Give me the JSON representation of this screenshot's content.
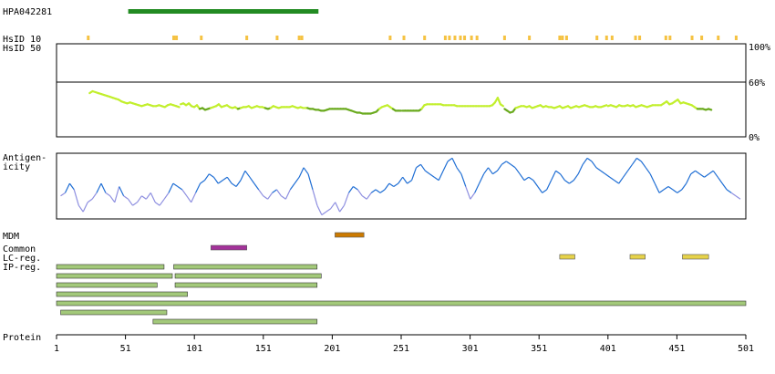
{
  "chart_data": {
    "type": "line",
    "title": "",
    "x_range": [
      1,
      501
    ],
    "x_ticks": [
      "1",
      "51",
      "101",
      "151",
      "201",
      "251",
      "301",
      "351",
      "401",
      "451",
      "501"
    ],
    "antibody": {
      "label": "HPA042281",
      "start": 53,
      "end": 191,
      "color": "#228b22"
    },
    "hsid10": {
      "label": "HsID 10",
      "color": "#f5c242",
      "positions": [
        24,
        86,
        88,
        106,
        139,
        161,
        177,
        179,
        243,
        253,
        268,
        283,
        286,
        290,
        294,
        297,
        302,
        306,
        326,
        344,
        366,
        368,
        371,
        393,
        400,
        404,
        421,
        424,
        443,
        446,
        462,
        469,
        481,
        494
      ]
    },
    "hsid50": {
      "label": "HsID 50",
      "y_ticks": [
        "100%",
        "60%",
        "0%"
      ],
      "ylim": [
        0,
        100
      ],
      "threshold": 60,
      "series": [
        {
          "start": 25,
          "end": 90,
          "values": [
            47,
            49,
            48,
            47,
            46,
            45,
            44,
            43,
            42,
            41,
            40,
            38,
            37,
            36,
            37,
            36,
            35,
            34,
            33,
            34,
            35,
            34,
            33,
            33,
            34,
            33,
            32,
            34,
            35,
            34,
            33,
            32
          ]
        },
        {
          "start": 91,
          "end": 180,
          "values": [
            35,
            36,
            34,
            36,
            33,
            32,
            34,
            30,
            31,
            29,
            30,
            31,
            32,
            33,
            35,
            32,
            33,
            34,
            32,
            31,
            32,
            30,
            31,
            32,
            32,
            33,
            31,
            32,
            33,
            32,
            32,
            31,
            30,
            31,
            33,
            32,
            31,
            32,
            32,
            32,
            32,
            33,
            32,
            31,
            32,
            31
          ]
        },
        {
          "start": 181,
          "end": 251,
          "values": [
            31,
            31,
            30,
            30,
            29,
            29,
            28,
            28,
            29,
            30,
            30,
            30,
            30,
            30,
            30,
            30,
            29,
            28,
            27,
            26,
            26,
            25,
            25,
            25,
            25,
            26,
            27,
            30,
            32,
            33,
            34,
            32,
            30,
            28,
            28,
            28
          ]
        },
        {
          "start": 252,
          "end": 325,
          "values": [
            28,
            28,
            28,
            28,
            28,
            28,
            28,
            30,
            34,
            35,
            35,
            35,
            35,
            35,
            35,
            34,
            34,
            34,
            34,
            34,
            33,
            33,
            33,
            33,
            33,
            33,
            33,
            33,
            33,
            33,
            33,
            33,
            33,
            34,
            37,
            42,
            35,
            33
          ]
        },
        {
          "start": 326,
          "end": 400,
          "values": [
            30,
            28,
            26,
            27,
            31,
            32,
            33,
            33,
            32,
            33,
            31,
            32,
            33,
            34,
            32,
            33,
            32,
            32,
            31,
            32,
            33,
            31,
            32,
            33,
            31,
            32,
            33,
            32,
            33,
            34,
            33,
            32,
            32,
            33,
            32,
            32,
            33,
            34
          ]
        },
        {
          "start": 401,
          "end": 476,
          "values": [
            33,
            34,
            33,
            32,
            34,
            33,
            33,
            34,
            33,
            34,
            32,
            33,
            34,
            33,
            32,
            33,
            34,
            34,
            34,
            34,
            36,
            38,
            35,
            36,
            38,
            40,
            36,
            37,
            36,
            35,
            34,
            32,
            30,
            30,
            30,
            29,
            30,
            29
          ]
        }
      ]
    },
    "antigenicity": {
      "label": "Antigen-icity",
      "ylim": [
        0,
        100
      ],
      "start": 4,
      "end": 497,
      "values": [
        35,
        40,
        55,
        45,
        20,
        10,
        25,
        30,
        40,
        55,
        40,
        35,
        25,
        50,
        35,
        30,
        20,
        25,
        35,
        30,
        40,
        25,
        20,
        30,
        40,
        55,
        50,
        45,
        35,
        25,
        40,
        55,
        60,
        70,
        65,
        55,
        60,
        65,
        55,
        50,
        60,
        75,
        65,
        55,
        45,
        35,
        30,
        40,
        45,
        35,
        30,
        45,
        55,
        65,
        80,
        70,
        45,
        20,
        5,
        10,
        15,
        25,
        10,
        20,
        40,
        50,
        45,
        35,
        30,
        40,
        45,
        40,
        45,
        55,
        50,
        55,
        65,
        55,
        60,
        80,
        85,
        75,
        70,
        65,
        60,
        75,
        90,
        95,
        80,
        70,
        50,
        30,
        40,
        55,
        70,
        80,
        70,
        75,
        85,
        90,
        85,
        80,
        70,
        60,
        65,
        60,
        50,
        40,
        45,
        60,
        75,
        70,
        60,
        55,
        60,
        70,
        85,
        95,
        90,
        80,
        75,
        70,
        65,
        60,
        55,
        65,
        75,
        85,
        95,
        90,
        80,
        70,
        55,
        40,
        45,
        50,
        45,
        40,
        45,
        55,
        70,
        75,
        70,
        65,
        70,
        75,
        65,
        55,
        45,
        40,
        35,
        30
      ]
    },
    "tracks": [
      {
        "label": "MDM",
        "color": "#cc7a00",
        "segments": [
          [
            203,
            224
          ]
        ]
      },
      {
        "label": "Common",
        "color": "#a3329a",
        "segments": [
          [
            113,
            139
          ]
        ]
      },
      {
        "label": "LC-reg.",
        "color": "#e6d24a",
        "segments": [
          [
            366,
            377
          ],
          [
            417,
            428
          ],
          [
            455,
            474
          ]
        ]
      }
    ],
    "ipreg": {
      "label": "IP-reg.",
      "color": "#a3c97a",
      "rows": [
        [
          [
            1,
            79
          ],
          [
            86,
            190
          ]
        ],
        [
          [
            1,
            85
          ],
          [
            87,
            193
          ]
        ],
        [
          [
            1,
            74
          ],
          [
            87,
            190
          ]
        ],
        [
          [
            1,
            96
          ]
        ],
        [
          [
            1,
            501
          ]
        ],
        [
          [
            4,
            81
          ]
        ],
        [
          [
            71,
            190
          ]
        ]
      ]
    },
    "protein": {
      "label": "Protein",
      "length": 501
    }
  }
}
